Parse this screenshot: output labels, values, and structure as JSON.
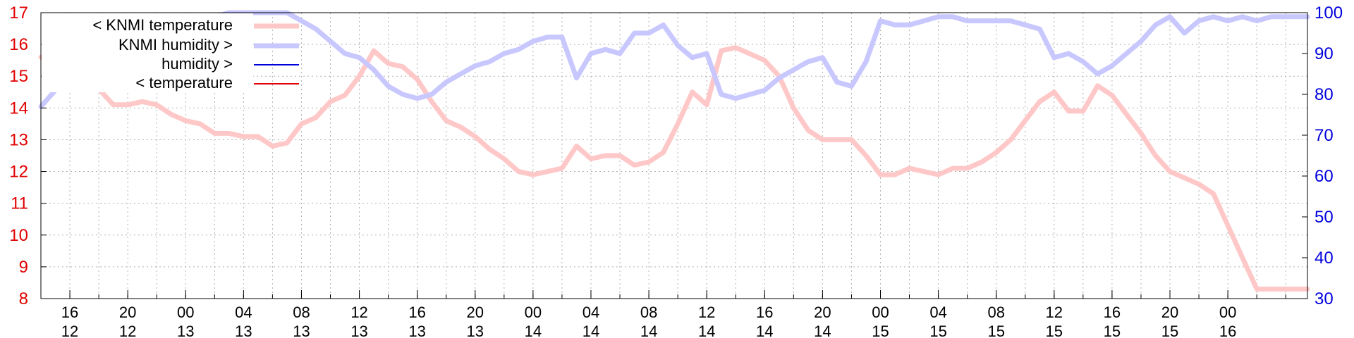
{
  "chart_data": {
    "type": "line",
    "y_left": {
      "ylim": [
        8,
        17
      ],
      "ticks": [
        "8",
        "9",
        "10",
        "11",
        "12",
        "13",
        "14",
        "15",
        "16",
        "17"
      ],
      "color": "#e00000"
    },
    "y_right": {
      "ylim": [
        30,
        100
      ],
      "ticks": [
        "30",
        "40",
        "50",
        "60",
        "70",
        "80",
        "90",
        "100"
      ],
      "color": "#0000dd"
    },
    "x_range_hours": [
      0,
      87.5
    ],
    "x_ticks": [
      {
        "hour": "16",
        "day": "12",
        "x": 2
      },
      {
        "hour": "20",
        "day": "12",
        "x": 6
      },
      {
        "hour": "00",
        "day": "13",
        "x": 10
      },
      {
        "hour": "04",
        "day": "13",
        "x": 14
      },
      {
        "hour": "08",
        "day": "13",
        "x": 18
      },
      {
        "hour": "12",
        "day": "13",
        "x": 22
      },
      {
        "hour": "16",
        "day": "13",
        "x": 26
      },
      {
        "hour": "20",
        "day": "13",
        "x": 30
      },
      {
        "hour": "00",
        "day": "14",
        "x": 34
      },
      {
        "hour": "04",
        "day": "14",
        "x": 38
      },
      {
        "hour": "08",
        "day": "14",
        "x": 42
      },
      {
        "hour": "12",
        "day": "14",
        "x": 46
      },
      {
        "hour": "16",
        "day": "14",
        "x": 50
      },
      {
        "hour": "20",
        "day": "14",
        "x": 54
      },
      {
        "hour": "00",
        "day": "15",
        "x": 58
      },
      {
        "hour": "04",
        "day": "15",
        "x": 62
      },
      {
        "hour": "08",
        "day": "15",
        "x": 66
      },
      {
        "hour": "12",
        "day": "15",
        "x": 70
      },
      {
        "hour": "16",
        "day": "15",
        "x": 74
      },
      {
        "hour": "20",
        "day": "15",
        "x": 78
      },
      {
        "hour": "00",
        "day": "16",
        "x": 82
      }
    ],
    "grid": true,
    "legend_position": "top-left",
    "series": [
      {
        "name": "< KNMI temperature",
        "axis": "left",
        "color": "#ffc8c8",
        "x": [
          0,
          0.5,
          1,
          3,
          4,
          5,
          6,
          7,
          8,
          9,
          10,
          11,
          12,
          13,
          14,
          15,
          16,
          17,
          18,
          19,
          20,
          21,
          22,
          23,
          24,
          25,
          26,
          27,
          28,
          29,
          30,
          31,
          32,
          33,
          34,
          35,
          36,
          37,
          38,
          39,
          40,
          41,
          42,
          43,
          44,
          45,
          46,
          47,
          48,
          49,
          50,
          51,
          52,
          53,
          54,
          55,
          56,
          57,
          58,
          59,
          60,
          61,
          62,
          63,
          64,
          65,
          66,
          67,
          68,
          69,
          70,
          71,
          72,
          73,
          74,
          75,
          76,
          77,
          78,
          79,
          80,
          81,
          82,
          83,
          84,
          85,
          86,
          87,
          87.5
        ],
        "y": [
          15.6,
          15.6,
          15.5,
          14.8,
          14.6,
          14.1,
          14.1,
          14.2,
          14.1,
          13.8,
          13.6,
          13.5,
          13.2,
          13.2,
          13.1,
          13.1,
          12.8,
          12.9,
          13.5,
          13.7,
          14.2,
          14.4,
          15.0,
          15.8,
          15.4,
          15.3,
          14.9,
          14.2,
          13.6,
          13.4,
          13.1,
          12.7,
          12.4,
          12.0,
          11.9,
          12.0,
          12.1,
          12.8,
          12.4,
          12.5,
          12.5,
          12.2,
          12.3,
          12.6,
          13.5,
          14.5,
          14.1,
          15.8,
          15.9,
          15.7,
          15.5,
          15.0,
          14.0,
          13.3,
          13.0,
          13.0,
          13.0,
          12.5,
          11.9,
          11.9,
          12.1,
          12.0,
          11.9,
          12.1,
          12.1,
          12.3,
          12.6,
          13.0,
          13.6,
          14.2,
          14.5,
          13.9,
          13.9,
          14.7,
          14.4,
          13.8,
          13.2,
          12.5,
          12.0,
          11.8,
          11.6,
          11.3,
          10.3,
          9.3,
          8.3,
          8.3,
          8.3,
          8.3,
          8.3
        ]
      },
      {
        "name": "KNMI humidity >",
        "axis": "right",
        "color": "#c8c8ff",
        "x": [
          0,
          1,
          2,
          3,
          4,
          5,
          6,
          7,
          8,
          9,
          10,
          11,
          12,
          13,
          14,
          15,
          16,
          17,
          18,
          19,
          20,
          21,
          22,
          23,
          24,
          25,
          26,
          27,
          28,
          29,
          30,
          31,
          32,
          33,
          34,
          35,
          36,
          37,
          38,
          39,
          40,
          41,
          42,
          43,
          44,
          45,
          46,
          47,
          48,
          49,
          50,
          51,
          52,
          53,
          54,
          55,
          56,
          57,
          58,
          59,
          60,
          61,
          62,
          63,
          64,
          65,
          66,
          67,
          68,
          69,
          70,
          71,
          72,
          73,
          74,
          75,
          76,
          77,
          78,
          79,
          80,
          81,
          82,
          83,
          84,
          85,
          86,
          87,
          87.5
        ],
        "y": [
          77,
          81,
          84,
          85,
          88,
          90,
          92,
          94,
          96,
          97,
          98,
          99,
          99,
          100,
          100,
          100,
          100,
          100,
          98,
          96,
          93,
          90,
          89,
          86,
          82,
          80,
          79,
          80,
          83,
          85,
          87,
          88,
          90,
          91,
          93,
          94,
          94,
          84,
          90,
          91,
          90,
          95,
          95,
          97,
          92,
          89,
          90,
          80,
          79,
          80,
          81,
          84,
          86,
          88,
          89,
          83,
          82,
          88,
          98,
          97,
          97,
          98,
          99,
          99,
          98,
          98,
          98,
          98,
          97,
          96,
          89,
          90,
          88,
          85,
          87,
          90,
          93,
          97,
          99,
          95,
          98,
          99,
          98,
          99,
          98,
          99,
          99,
          99,
          99
        ]
      },
      {
        "name": "humidity >",
        "axis": "right",
        "color": "#0000dd",
        "x": [],
        "y": []
      },
      {
        "name": "< temperature",
        "axis": "left",
        "color": "#e00000",
        "x": [],
        "y": []
      }
    ]
  }
}
